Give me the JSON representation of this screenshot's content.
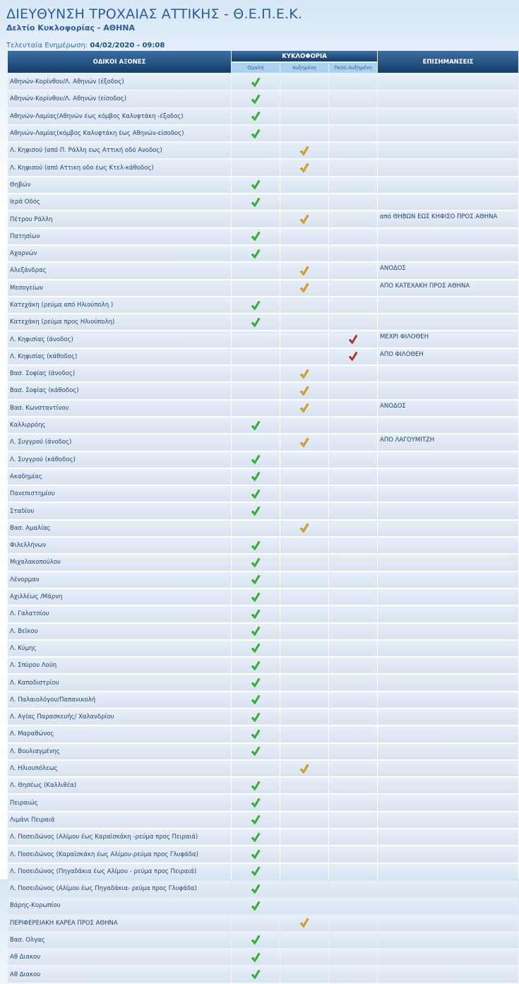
{
  "header": {
    "title": "ΔΙΕΥΘΥΝΣΗ ΤΡΟΧΑΙΑΣ ΑΤΤΙΚΗΣ - Θ.Ε.Π.Ε.Κ.",
    "subtitle": "Δελτίο Κυκλοφορίας - ΑΘΗΝΑ",
    "updated_label": "Τελευταία Ενημέρωση:",
    "updated_value": "04/02/2020 - 09:08"
  },
  "table": {
    "col_roads": "ΟΔΙΚΟΙ ΑΞΟΝΕΣ",
    "col_traffic": "ΚΥΚΛΟΦΟΡΙΑ",
    "col_notes": "ΕΠΙΣΗΜΑΝΣΕΙΣ",
    "sub_normal": "Ομαλή",
    "sub_increased": "Αυξημένη",
    "sub_heavy": "Πολύ Αυξημένη",
    "status_colors": {
      "normal": "#22c41e",
      "increased": "#f2a900",
      "heavy": "#d81e1e"
    },
    "status_icon": "checkmark-icon",
    "rows": [
      {
        "road": "Αθηνών-Κορίνθου/Λ. Αθηνών (έξοδος)",
        "status": "normal",
        "note": ""
      },
      {
        "road": "Αθηνών-Κορίνθου/Λ. Αθηνών (είσοδος)",
        "status": "normal",
        "note": ""
      },
      {
        "road": "Αθηνών-Λαμίας(Αθηνών έως κόμβος Καλυφτάκη -έξοδος)",
        "status": "normal",
        "note": ""
      },
      {
        "road": "Αθηνών-Λαμίας(κόμβος Καλυφτάκη έως Αθηνών-είσοδος)",
        "status": "normal",
        "note": ""
      },
      {
        "road": "Λ. Κηφισού (από Π. Ράλλη εως Αττική οδό Ανοδος)",
        "status": "increased",
        "note": ""
      },
      {
        "road": "Λ. Κηφισού (από Αττικη οδο έως Κτελ-κάθοδος)",
        "status": "increased",
        "note": ""
      },
      {
        "road": "Θηβών",
        "status": "normal",
        "note": ""
      },
      {
        "road": "Ιερά Οδός",
        "status": "normal",
        "note": ""
      },
      {
        "road": "Πέτρου Ράλλη",
        "status": "increased",
        "note": "από ΘΗΒΩΝ ΕΩΣ ΚΗΦΙΣΟ ΠΡΟΣ ΑΘΗΝΑ"
      },
      {
        "road": "Πατησίων",
        "status": "normal",
        "note": ""
      },
      {
        "road": "Αχαρνών",
        "status": "normal",
        "note": ""
      },
      {
        "road": "Αλεξάνδρας",
        "status": "increased",
        "note": "ΑΝΟΔΟΣ"
      },
      {
        "road": "Μεσογείων",
        "status": "increased",
        "note": "ΑΠΟ ΚΑΤΕΧΑΚΗ ΠΡΟΣ ΑΘΗΝΑ"
      },
      {
        "road": "Κατεχάκη (ρεύμα από Ηλιούπολη )",
        "status": "normal",
        "note": ""
      },
      {
        "road": "Κατεχάκη (ρεύμα προς Ηλιούπολη)",
        "status": "normal",
        "note": ""
      },
      {
        "road": "Λ. Κηφισίας (άνοδος)",
        "status": "heavy",
        "note": "ΜΕΧΡΙ ΦΙΛΟΘΕΗ"
      },
      {
        "road": "Λ. Κηφισίας (κάθοδος)",
        "status": "heavy",
        "note": "ΑΠΟ ΦΙΛΟΘΕΗ"
      },
      {
        "road": "Βασ. Σοφίας (άνοδος)",
        "status": "increased",
        "note": ""
      },
      {
        "road": "Βασ. Σοφίας (κάθοδος)",
        "status": "increased",
        "note": ""
      },
      {
        "road": "Βασ. Κωνσταντίνου",
        "status": "increased",
        "note": "ΑΝΟΔΟΣ"
      },
      {
        "road": "Καλλιρρόης",
        "status": "normal",
        "note": ""
      },
      {
        "road": "Λ. Συγγρού (άνοδος)",
        "status": "increased",
        "note": "ΑΠΟ ΛΑΓΟΥΜΙΤΖΗ"
      },
      {
        "road": "Λ. Συγγρού (κάθοδος)",
        "status": "normal",
        "note": ""
      },
      {
        "road": "Ακαδημίας",
        "status": "normal",
        "note": ""
      },
      {
        "road": "Πανεπιστημίου",
        "status": "normal",
        "note": ""
      },
      {
        "road": "Σταδίου",
        "status": "normal",
        "note": ""
      },
      {
        "road": "Βασ. Αμαλίας",
        "status": "increased",
        "note": ""
      },
      {
        "road": "Φιλελλήνων",
        "status": "normal",
        "note": ""
      },
      {
        "road": "Μιχαλακοπούλου",
        "status": "normal",
        "note": ""
      },
      {
        "road": "Λένορμαν",
        "status": "normal",
        "note": ""
      },
      {
        "road": "Αχιλλέως /Μάρνη",
        "status": "normal",
        "note": ""
      },
      {
        "road": "Λ. Γαλατσίου",
        "status": "normal",
        "note": ""
      },
      {
        "road": "Λ. Βεϊκου",
        "status": "normal",
        "note": ""
      },
      {
        "road": "Λ. Κύμης",
        "status": "normal",
        "note": ""
      },
      {
        "road": "Λ. Σπύρου Λούη",
        "status": "normal",
        "note": ""
      },
      {
        "road": "Λ. Καποδιστρίου",
        "status": "normal",
        "note": ""
      },
      {
        "road": "Λ. Παλαιολόγου/Παπανικολή",
        "status": "normal",
        "note": ""
      },
      {
        "road": "Λ. Αγίας Παρασκευής/ Χαλανδρίου",
        "status": "normal",
        "note": ""
      },
      {
        "road": "Λ. Μαραθώνος",
        "status": "normal",
        "note": ""
      },
      {
        "road": "Λ. Βουλιαγμένης",
        "status": "normal",
        "note": ""
      },
      {
        "road": "Λ. Ηλιουπόλεως",
        "status": "increased",
        "note": ""
      },
      {
        "road": "Λ. Θησέως (Καλλιθέα)",
        "status": "normal",
        "note": ""
      },
      {
        "road": "Πειραιώς",
        "status": "normal",
        "note": ""
      },
      {
        "road": "Λιμάνι Πειραιά",
        "status": "normal",
        "note": ""
      },
      {
        "road": "Λ. Ποσειδώνος (Αλίμου έως Καραϊσκάκη -ρεύμα προς Πειραιά)",
        "status": "normal",
        "note": ""
      },
      {
        "road": "Λ. Ποσειδώνος (Καραϊσκάκη έως Αλίμου-ρεύμα προς Γλυφάδα)",
        "status": "normal",
        "note": ""
      },
      {
        "road": "Λ. Ποσειδώνος (Πηγαδάκια έως Αλίμου - ρεύμα προς Πειραιά)",
        "status": "normal",
        "note": ""
      },
      {
        "road": "Λ. Ποσειδώνος (Αλίμου έως Πηγαδάκια- ρεύμα προς Γλυφάδα)",
        "status": "normal",
        "note": ""
      },
      {
        "road": "Βάρης-Κορωπίου",
        "status": "normal",
        "note": ""
      },
      {
        "road": "ΠΕΡΙΦΕΡΕΙΑΚΗ ΚΑΡΕΑ ΠΡΟΣ ΑΘΗΝΑ",
        "status": "increased",
        "note": ""
      },
      {
        "road": "Βασ. Ολγας",
        "status": "normal",
        "note": ""
      },
      {
        "road": "Αθ Διακου",
        "status": "normal",
        "note": ""
      },
      {
        "road": "Αθ Διακου",
        "status": "normal",
        "note": ""
      }
    ]
  }
}
